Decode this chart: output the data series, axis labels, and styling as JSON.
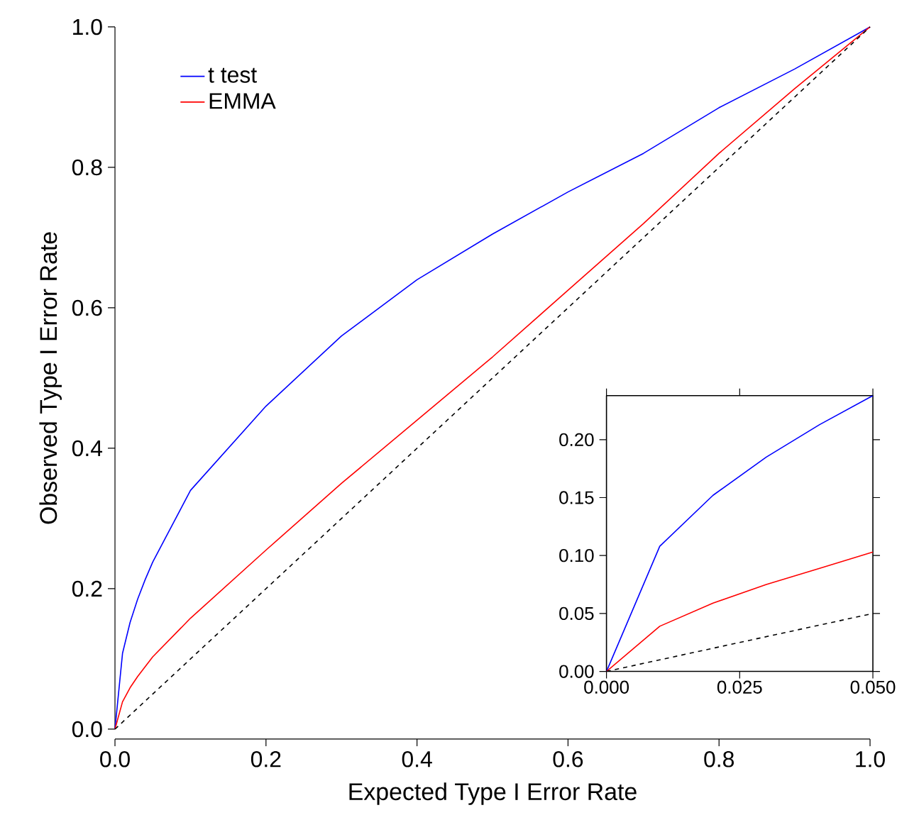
{
  "chart_data": [
    {
      "type": "line",
      "xlabel": "Expected Type I Error Rate",
      "ylabel": "Observed Type I Error Rate",
      "x": [
        0,
        0.01,
        0.02,
        0.03,
        0.04,
        0.05,
        0.1,
        0.2,
        0.3,
        0.4,
        0.5,
        0.6,
        0.7,
        0.8,
        0.9,
        1
      ],
      "xlim": [
        0,
        1
      ],
      "ylim": [
        0,
        1
      ],
      "xticks": [
        {
          "value": 0,
          "label": "0.0"
        },
        0.2,
        0.4,
        0.6,
        0.8,
        {
          "value": 1,
          "label": "1.0"
        }
      ],
      "yticks": [
        {
          "value": 0,
          "label": "0.0"
        },
        0.2,
        0.4,
        0.6,
        0.8,
        {
          "value": 1,
          "label": "1.0"
        }
      ],
      "legend": "top left",
      "series": [
        {
          "name": "t test",
          "color": "#0000ff",
          "values": [
            0,
            0.108,
            0.152,
            0.185,
            0.213,
            0.238,
            0.34,
            0.46,
            0.56,
            0.64,
            0.705,
            0.765,
            0.82,
            0.885,
            0.94,
            1
          ]
        },
        {
          "name": "EMMA",
          "color": "#ff0000",
          "values": [
            0,
            0.039,
            0.059,
            0.075,
            0.089,
            0.103,
            0.158,
            0.255,
            0.35,
            0.44,
            0.53,
            0.625,
            0.72,
            0.82,
            0.912,
            1
          ]
        },
        {
          "color": "#000000",
          "line_style": "dashed",
          "x": [
            0,
            1
          ],
          "values": [
            0,
            1
          ]
        }
      ]
    },
    {
      "type": "line",
      "x": [
        0,
        0.01,
        0.02,
        0.03,
        0.04,
        0.05
      ],
      "xlim": [
        0,
        0.05
      ],
      "ylim": [
        0,
        0.238
      ],
      "xticks": [
        {
          "value": 0,
          "label": "0.000"
        },
        {
          "value": 0.025,
          "label": "0.025"
        },
        {
          "value": 0.05,
          "label": "0.050"
        }
      ],
      "yticks": [
        {
          "value": 0,
          "label": "0.00"
        },
        {
          "value": 0.05,
          "label": "0.05"
        },
        {
          "value": 0.1,
          "label": "0.10"
        },
        {
          "value": 0.15,
          "label": "0.15"
        },
        {
          "value": 0.2,
          "label": "0.20"
        }
      ],
      "series": [
        {
          "color": "#0000ff",
          "values": [
            0,
            0.108,
            0.152,
            0.185,
            0.213,
            0.238
          ]
        },
        {
          "color": "#ff0000",
          "values": [
            0,
            0.039,
            0.059,
            0.075,
            0.089,
            0.103
          ]
        },
        {
          "color": "#000000",
          "line_style": "dashed",
          "x": [
            0,
            0.05
          ],
          "values": [
            0,
            0.05
          ]
        }
      ]
    }
  ]
}
